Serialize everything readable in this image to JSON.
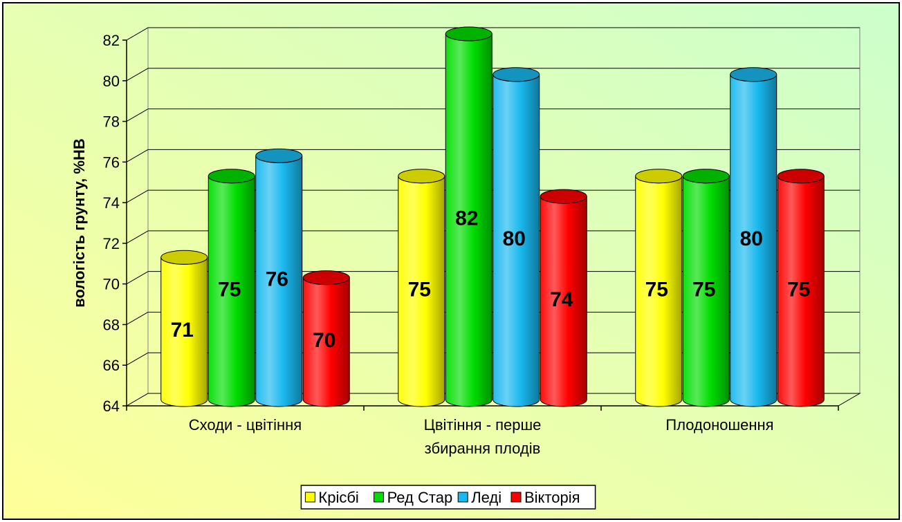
{
  "chart_data": {
    "type": "bar",
    "title": "",
    "xlabel": "",
    "ylabel": "вологість грунту, %НВ",
    "ylim": [
      64,
      82
    ],
    "yticks": [
      64,
      66,
      68,
      70,
      72,
      74,
      76,
      78,
      80,
      82
    ],
    "categories": [
      [
        "Сходи - цвітіння"
      ],
      [
        "Цвітіння - перше",
        "збирання плодів"
      ],
      [
        "Плодоношення"
      ]
    ],
    "series": [
      {
        "name": "Крісбі",
        "color": "#ffff00",
        "values": [
          71,
          75,
          75
        ]
      },
      {
        "name": "Ред Стар",
        "color": "#00dd00",
        "values": [
          75,
          82,
          75
        ]
      },
      {
        "name": "Леді",
        "color": "#19b8ee",
        "values": [
          76,
          80,
          80
        ]
      },
      {
        "name": "Вікторія",
        "color": "#ff0000",
        "values": [
          70,
          74,
          75
        ]
      }
    ],
    "data_labels": [
      [
        "71",
        "75",
        "75"
      ],
      [
        "75",
        "82",
        "75"
      ],
      [
        "76",
        "80",
        "80"
      ],
      [
        "70",
        "74",
        "75"
      ]
    ],
    "grid": true,
    "legend_position": "bottom",
    "style": "3d-cylinder",
    "background": {
      "from": "#ffff99",
      "to": "#ccffcc"
    }
  }
}
